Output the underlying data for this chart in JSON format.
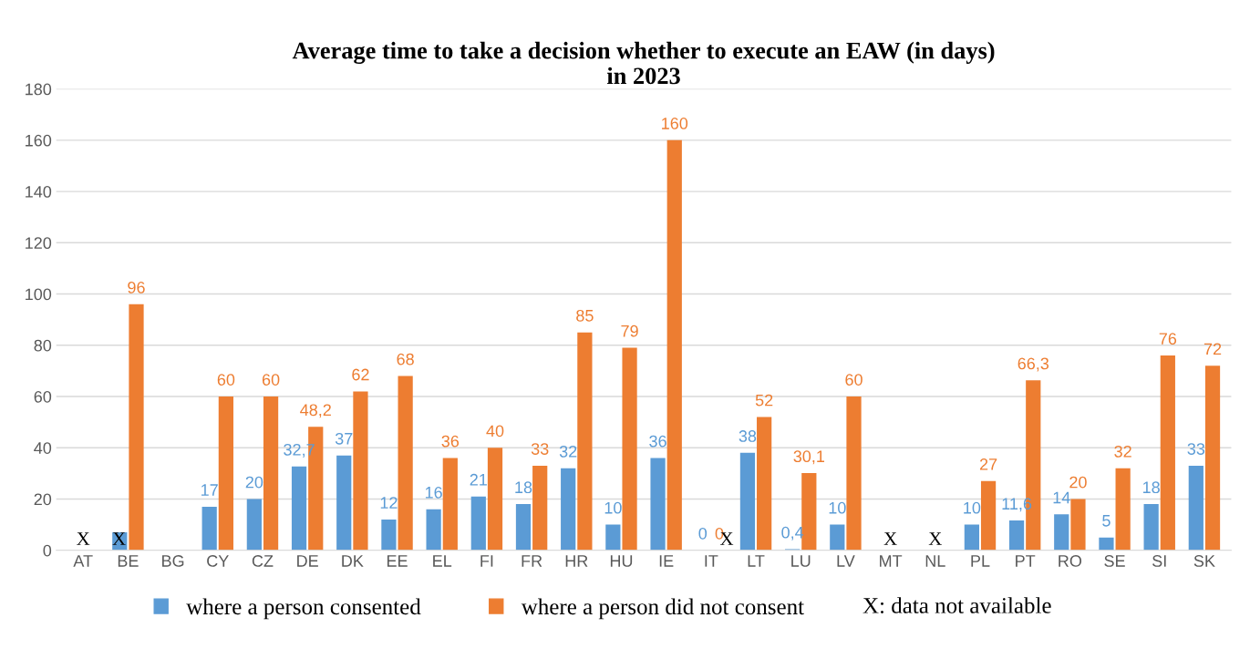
{
  "chart_data": {
    "type": "bar",
    "title": "Average time to take a decision whether to execute an EAW (in days)\nin 2023",
    "categories": [
      "AT",
      "BE",
      "BG",
      "CY",
      "CZ",
      "DE",
      "DK",
      "EE",
      "EL",
      "FI",
      "FR",
      "HR",
      "HU",
      "IE",
      "IT",
      "LT",
      "LU",
      "LV",
      "MT",
      "NL",
      "PL",
      "PT",
      "RO",
      "SE",
      "SI",
      "SK"
    ],
    "series": [
      {
        "name": "where a person consented",
        "color": "#5b9bd5",
        "values": [
          null,
          7,
          null,
          17,
          20,
          32.7,
          37,
          12,
          16,
          21,
          18,
          32,
          10,
          36,
          0,
          38,
          0.4,
          10,
          null,
          null,
          10,
          11.6,
          14,
          5,
          18,
          33
        ],
        "value_labels": [
          null,
          null,
          null,
          "17",
          "20",
          "32,7",
          "37",
          "12",
          "16",
          "21",
          "18",
          "32",
          "10",
          "36",
          "0",
          "38",
          "0,4",
          "10",
          null,
          null,
          "10",
          "11,6",
          "14",
          "5",
          "18",
          "33"
        ]
      },
      {
        "name": "where a person did not consent",
        "color": "#ed7d31",
        "values": [
          null,
          96,
          null,
          60,
          60,
          48.2,
          62,
          68,
          36,
          40,
          33,
          85,
          79,
          160,
          0,
          52,
          30.1,
          60,
          null,
          null,
          27,
          66.3,
          20,
          32,
          76,
          72
        ],
        "value_labels": [
          null,
          "96",
          null,
          "60",
          "60",
          "48,2",
          "62",
          "68",
          "36",
          "40",
          "33",
          "85",
          "79",
          "160",
          "0",
          "52",
          "30,1",
          "60",
          null,
          null,
          "27",
          "66,3",
          "20",
          "32",
          "76",
          "72"
        ]
      }
    ],
    "ylim": [
      0,
      180
    ],
    "yticks": [
      0,
      20,
      40,
      60,
      80,
      100,
      120,
      140,
      160,
      180
    ],
    "grid": "y",
    "legend": "bottom",
    "annotations": [
      "X",
      "X",
      "X",
      "X",
      "X",
      "X: data not available"
    ]
  }
}
